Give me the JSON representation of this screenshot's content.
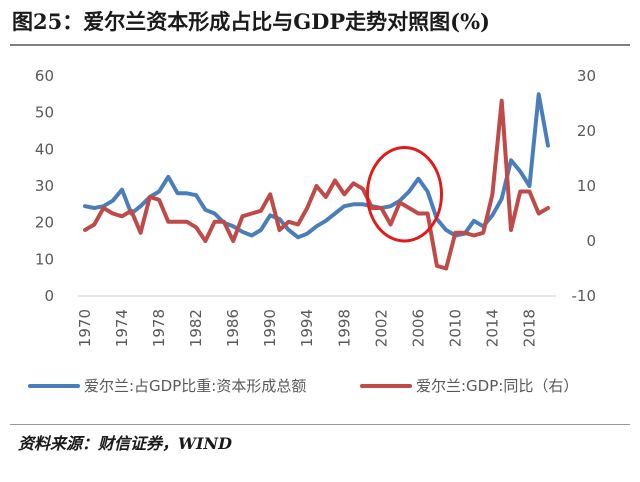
{
  "title": "图25：爱尔兰资本形成占比与GDP走势对照图(%)",
  "source": "资料来源：财信证券，WIND",
  "colors": {
    "series1": "#4a7ebb",
    "series2": "#be4b48",
    "highlight": "#e21a1a",
    "axis": "#d9d9d9"
  },
  "chart_data": {
    "type": "line",
    "x_ticks": [
      "1970",
      "1974",
      "1978",
      "1982",
      "1986",
      "1990",
      "1994",
      "1998",
      "2002",
      "2006",
      "2010",
      "2014",
      "2018"
    ],
    "y_left": {
      "ticks": [
        "0",
        "10",
        "20",
        "30",
        "40",
        "50",
        "60"
      ],
      "range": [
        0,
        60
      ]
    },
    "y_right": {
      "ticks": [
        "-10",
        "0",
        "10",
        "20",
        "30"
      ],
      "range": [
        -10,
        30
      ]
    },
    "grid": false,
    "legend_position": "bottom",
    "series": [
      {
        "name": "爱尔兰:占GDP比重:资本形成总额",
        "axis": "left",
        "x": [
          1970,
          1971,
          1972,
          1973,
          1974,
          1975,
          1976,
          1977,
          1978,
          1979,
          1980,
          1981,
          1982,
          1983,
          1984,
          1985,
          1986,
          1987,
          1988,
          1989,
          1990,
          1991,
          1992,
          1993,
          1994,
          1995,
          1996,
          1997,
          1998,
          1999,
          2000,
          2001,
          2002,
          2003,
          2004,
          2005,
          2006,
          2007,
          2008,
          2009,
          2010,
          2011,
          2012,
          2013,
          2014,
          2015,
          2016,
          2017,
          2018,
          2019,
          2020
        ],
        "values": [
          24.5,
          24,
          24.5,
          26,
          29,
          22.5,
          24.5,
          27,
          28.5,
          32.5,
          28,
          28,
          27.5,
          23.5,
          22.5,
          20,
          19,
          17.5,
          16.5,
          18,
          22,
          21,
          18,
          16,
          17,
          19,
          20.5,
          22.5,
          24.5,
          25,
          25,
          24.5,
          24,
          24.5,
          26,
          28.5,
          32,
          28.5,
          21,
          18,
          16.5,
          17,
          20.5,
          19,
          22,
          26.5,
          37,
          34,
          30,
          55,
          41
        ]
      },
      {
        "name": "爱尔兰:GDP:同比（右）",
        "axis": "right",
        "x": [
          1970,
          1971,
          1972,
          1973,
          1974,
          1975,
          1976,
          1977,
          1978,
          1979,
          1980,
          1981,
          1982,
          1983,
          1984,
          1985,
          1986,
          1987,
          1988,
          1989,
          1990,
          1991,
          1992,
          1993,
          1994,
          1995,
          1996,
          1997,
          1998,
          1999,
          2000,
          2001,
          2002,
          2003,
          2004,
          2005,
          2006,
          2007,
          2008,
          2009,
          2010,
          2011,
          2012,
          2013,
          2014,
          2015,
          2016,
          2017,
          2018,
          2019,
          2020
        ],
        "values": [
          2,
          3,
          6,
          5,
          4.5,
          5.5,
          1.5,
          8,
          7.5,
          3.5,
          3.5,
          3.5,
          2.5,
          0,
          3.5,
          3.5,
          0,
          4.5,
          5,
          5.5,
          8.5,
          2,
          3.5,
          3,
          6,
          10,
          8,
          11,
          8.5,
          10.5,
          9.5,
          6,
          6,
          3,
          7,
          6,
          5,
          5,
          -4.5,
          -5,
          1.5,
          1.5,
          1,
          1.5,
          8.5,
          25.5,
          2,
          9,
          9,
          5,
          6
        ]
      }
    ],
    "highlight_ellipse": {
      "x_range": [
        2000.5,
        2008.5
      ],
      "y_range_left": [
        15,
        40.5
      ]
    }
  }
}
